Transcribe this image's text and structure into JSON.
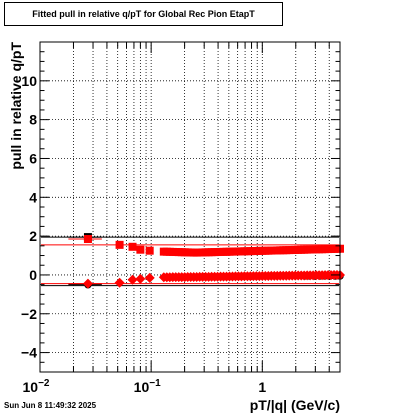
{
  "chart_data": {
    "type": "scatter",
    "title": "Fitted pull in relative q/pT for Global Rec Pion EtapT",
    "xlabel": "pT/|q| (GeV/c)",
    "ylabel": "pull in relative q/pT",
    "x_scale": "log",
    "xlim": [
      0.01,
      5.0
    ],
    "ylim": [
      -5.0,
      12.0
    ],
    "grid": true,
    "x_tick_labels": [
      {
        "value": 0.01,
        "base": "10",
        "exp": "−2"
      },
      {
        "value": 0.1,
        "base": "10",
        "exp": "−1"
      },
      {
        "value": 1,
        "base": "1",
        "exp": ""
      }
    ],
    "y_tick_labels": [
      {
        "value": -4,
        "text": "−4"
      },
      {
        "value": -2,
        "text": "−2"
      },
      {
        "value": 0,
        "text": "0"
      },
      {
        "value": 2,
        "text": "2"
      },
      {
        "value": 4,
        "text": "4"
      },
      {
        "value": 6,
        "text": "6"
      },
      {
        "value": 8,
        "text": "8"
      },
      {
        "value": 10,
        "text": "10"
      }
    ],
    "series": [
      {
        "marker": "square",
        "color": "#000000",
        "fit_color": "#000000",
        "points": [
          {
            "x": 0.027,
            "y": 1.95,
            "ex": 0.009
          }
        ],
        "fit_y": 1.95
      },
      {
        "marker": "square",
        "color": "#ff0000",
        "fit_color": "#ff0000",
        "points": [
          {
            "x": 0.027,
            "y": 1.85,
            "ex": 0.009
          },
          {
            "x": 0.052,
            "y": 1.55,
            "ex": 0.004
          },
          {
            "x": 0.068,
            "y": 1.45,
            "ex": 0.005
          },
          {
            "x": 0.08,
            "y": 1.3,
            "ex": 0.005
          },
          {
            "x": 0.097,
            "y": 1.25,
            "ex": 0.007
          }
        ],
        "dense": {
          "x_from": 0.13,
          "x_to": 5.0,
          "n": 60,
          "y_start": 1.2,
          "y_min": 1.15,
          "y_mid_x": 0.25,
          "y_end": 1.35
        },
        "fit_y": 1.55
      },
      {
        "marker": "circle",
        "color": "#000000",
        "fit_color": "#000000",
        "points": [
          {
            "x": 0.027,
            "y": -0.5,
            "ex": 0.009
          }
        ],
        "dense": {
          "x_from": 2.4,
          "x_to": 5.0,
          "n": 8,
          "y_start": -0.05,
          "y_min": -0.05,
          "y_mid_x": 3.0,
          "y_end": -0.05
        },
        "fit_y": -0.55
      },
      {
        "marker": "diamond",
        "color": "#ff0000",
        "fit_color": "#ff0000",
        "points": [
          {
            "x": 0.027,
            "y": -0.45,
            "ex": 0.009
          },
          {
            "x": 0.052,
            "y": -0.4,
            "ex": 0.004
          },
          {
            "x": 0.068,
            "y": -0.25,
            "ex": 0.005
          },
          {
            "x": 0.08,
            "y": -0.2,
            "ex": 0.005
          },
          {
            "x": 0.097,
            "y": -0.15,
            "ex": 0.007
          }
        ],
        "dense": {
          "x_from": 0.13,
          "x_to": 5.0,
          "n": 60,
          "y_start": -0.12,
          "y_min": -0.1,
          "y_mid_x": 0.3,
          "y_end": 0.0
        },
        "fit_y": -0.45
      }
    ]
  },
  "footer": {
    "timestamp": "Sun Jun  8 11:49:32 2025"
  }
}
